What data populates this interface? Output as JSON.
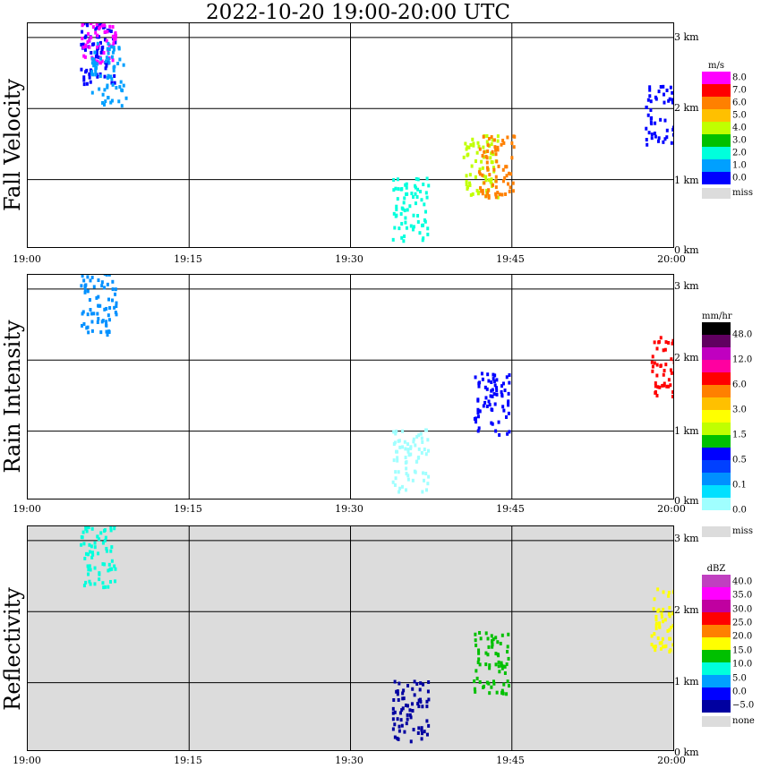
{
  "title": "2022-10-20  19:00-20:00 UTC",
  "x_tick_labels": [
    "19:00",
    "19:15",
    "19:30",
    "19:45",
    "20:00"
  ],
  "y_tick_labels": [
    "3 km",
    "2 km",
    "1 km",
    "0 km"
  ],
  "chart_data": [
    {
      "type": "heatmap",
      "title": "Fall Velocity",
      "ylabel": "Fall Velocity",
      "units": "m/s",
      "xlim": [
        "19:00",
        "20:00"
      ],
      "ylim_km": [
        0,
        3.2
      ],
      "legend": {
        "labels": [
          "8.0",
          "7.0",
          "6.0",
          "5.0",
          "4.0",
          "3.0",
          "2.0",
          "1.0",
          "0.0"
        ],
        "colors": [
          "#ff00ff",
          "#ff0000",
          "#ff8000",
          "#ffc000",
          "#c0ff00",
          "#00c000",
          "#00ffdc",
          "#00a0ff",
          "#0000ff"
        ],
        "missing_label": "miss"
      },
      "echoes": [
        {
          "t_min": 6.5,
          "h_km": 2.8,
          "color": "#0000ff"
        },
        {
          "t_min": 6.5,
          "h_km": 3.1,
          "color": "#ff00ff"
        },
        {
          "t_min": 7.5,
          "h_km": 2.5,
          "color": "#00a0ff"
        },
        {
          "t_min": 35.5,
          "h_km": 0.6,
          "color": "#00ffdc"
        },
        {
          "t_min": 42.0,
          "h_km": 1.2,
          "color": "#c0ff00"
        },
        {
          "t_min": 43.5,
          "h_km": 1.2,
          "color": "#ff8000"
        },
        {
          "t_min": 59.0,
          "h_km": 1.9,
          "color": "#0000ff"
        }
      ]
    },
    {
      "type": "heatmap",
      "title": "Rain Intensity",
      "ylabel": "Rain Intensity",
      "units": "mm/hr",
      "xlim": [
        "19:00",
        "20:00"
      ],
      "ylim_km": [
        0,
        3.2
      ],
      "legend": {
        "labels": [
          "48.0",
          "12.0",
          "6.0",
          "3.0",
          "1.5",
          "0.5",
          "0.1",
          "0.0"
        ],
        "colors": [
          "#000000",
          "#600060",
          "#c000c0",
          "#ff00a0",
          "#ff0000",
          "#ff8000",
          "#ffc000",
          "#ffff00",
          "#c0ff00",
          "#00c000",
          "#0000ff",
          "#0040ff",
          "#0090ff",
          "#00e0ff",
          "#a0ffff",
          "#ffffff"
        ],
        "missing_label": "miss"
      },
      "echoes": [
        {
          "t_min": 6.5,
          "h_km": 2.8,
          "color": "#0090ff"
        },
        {
          "t_min": 35.5,
          "h_km": 0.6,
          "color": "#a0ffff"
        },
        {
          "t_min": 43.0,
          "h_km": 1.4,
          "color": "#0000ff"
        },
        {
          "t_min": 59.5,
          "h_km": 1.9,
          "color": "#ff0000"
        }
      ]
    },
    {
      "type": "heatmap",
      "title": "Reflectivity",
      "ylabel": "Reflectivity",
      "units": "dBZ",
      "xlim": [
        "19:00",
        "20:00"
      ],
      "ylim_km": [
        0,
        3.2
      ],
      "legend": {
        "labels": [
          "40.0",
          "35.0",
          "30.0",
          "25.0",
          "20.0",
          "15.0",
          "10.0",
          "5.0",
          "0.0",
          "−5.0"
        ],
        "colors": [
          "#c040c0",
          "#ff00ff",
          "#c000a0",
          "#ff0000",
          "#ff8000",
          "#ffff00",
          "#00c000",
          "#00ffdc",
          "#00a0ff",
          "#0000ff",
          "#0000a0"
        ],
        "missing_label": "none"
      },
      "echoes": [
        {
          "t_min": 6.5,
          "h_km": 2.8,
          "color": "#00ffdc"
        },
        {
          "t_min": 35.5,
          "h_km": 0.6,
          "color": "#0000a0"
        },
        {
          "t_min": 43.0,
          "h_km": 1.3,
          "color": "#00c000"
        },
        {
          "t_min": 59.5,
          "h_km": 1.9,
          "color": "#ffff00"
        }
      ]
    }
  ]
}
